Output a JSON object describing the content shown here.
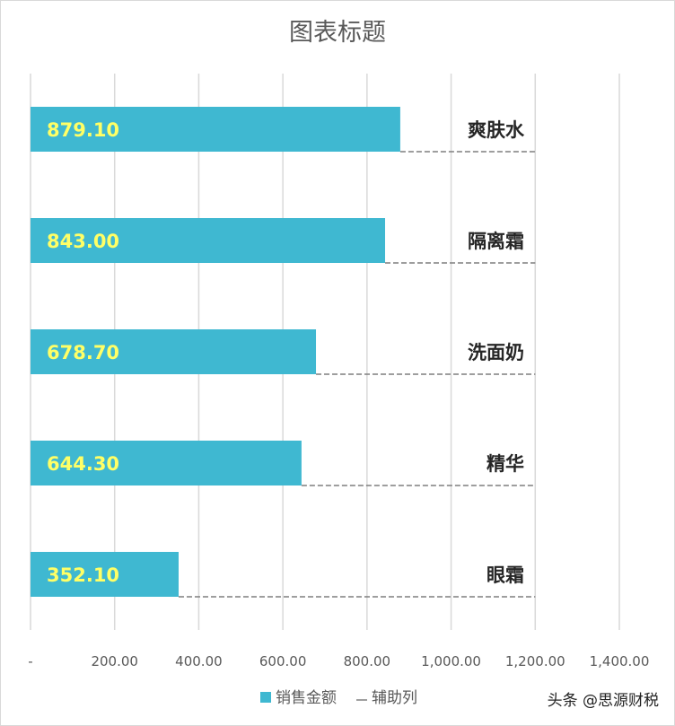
{
  "chart_data": {
    "type": "bar",
    "title": "图表标题",
    "categories": [
      "爽肤水",
      "隔离霜",
      "洗面奶",
      "精华",
      "眼霜"
    ],
    "series": [
      {
        "name": "销售金额",
        "values": [
          879.1,
          843.0,
          678.7,
          644.3,
          352.1
        ],
        "color": "#3fb8d1"
      },
      {
        "name": "辅助列",
        "values": [
          1200,
          1200,
          1200,
          1200,
          1200
        ],
        "color": "#7f7f7f",
        "style": "dashed"
      }
    ],
    "data_labels": [
      "879.10",
      "843.00",
      "678.70",
      "644.30",
      "352.10"
    ],
    "xlim": [
      0,
      1400
    ],
    "x_ticks": [
      {
        "value": 0,
        "label": "-"
      },
      {
        "value": 200,
        "label": "200.00"
      },
      {
        "value": 400,
        "label": "400.00"
      },
      {
        "value": 600,
        "label": "600.00"
      },
      {
        "value": 800,
        "label": "800.00"
      },
      {
        "value": 1000,
        "label": "1,000.00"
      },
      {
        "value": 1200,
        "label": "1,200.00"
      },
      {
        "value": 1400,
        "label": "1,400.00"
      }
    ],
    "grid": true,
    "legend_position": "bottom",
    "colors": {
      "bar": "#3fb8d1",
      "data_label": "#ffff66",
      "category_label": "#262626",
      "dashed_line": "#7f7f7f",
      "gridline": "#d9d9d9"
    }
  },
  "watermark": "头条 @思源财税"
}
